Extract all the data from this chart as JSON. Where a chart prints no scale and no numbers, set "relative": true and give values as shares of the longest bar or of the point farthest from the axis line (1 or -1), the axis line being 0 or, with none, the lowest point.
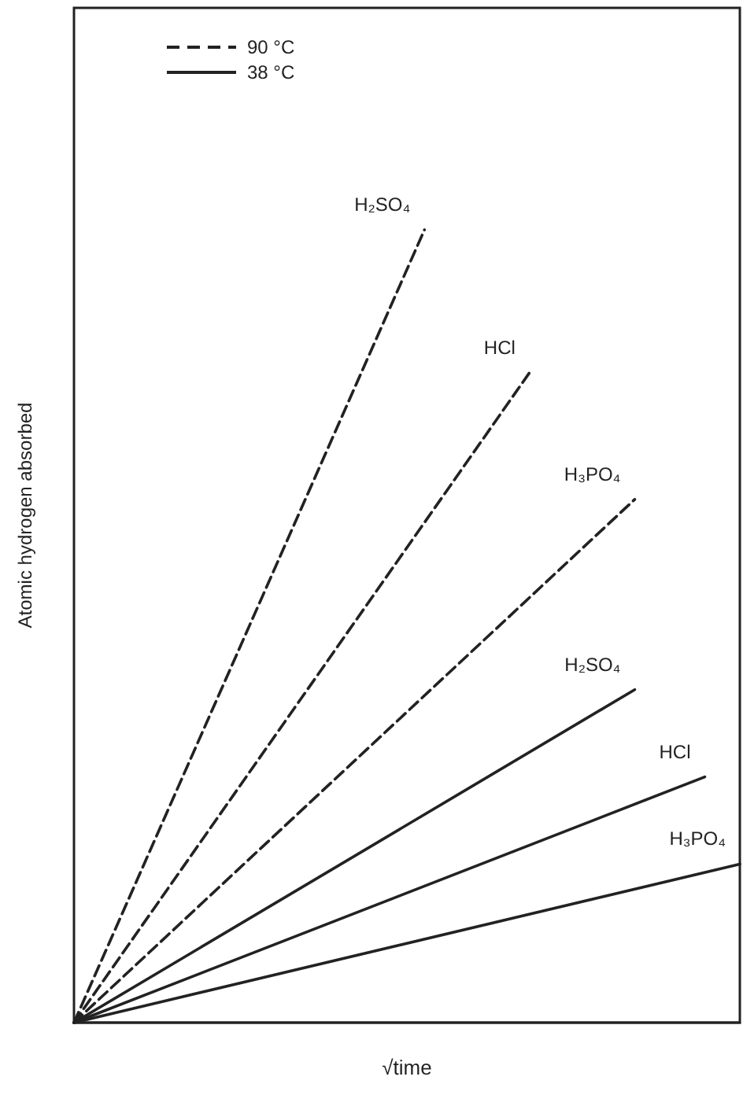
{
  "chart_data": {
    "type": "line",
    "relative": true,
    "xlabel": "√time",
    "ylabel": "Atomic hydrogen absorbed",
    "annotations": [
      "90 °C",
      "38 °C"
    ],
    "marker": "none",
    "legend": false,
    "grid": false,
    "tick_labels": false,
    "categories": [
      null,
      null,
      null,
      null,
      null,
      null,
      null,
      null,
      null,
      null,
      null,
      null,
      null,
      null,
      null,
      null,
      null,
      null,
      null,
      null
    ],
    "series": [
      {
        "name": "H₂SO₄",
        "color": "#222222",
        "line_style": "dashed",
        "values": [
          0,
          null,
          null,
          null,
          null,
          null,
          null,
          null,
          null,
          null,
          1,
          null,
          null,
          null,
          null,
          null,
          null,
          null,
          null,
          null
        ]
      },
      {
        "name": "HCl",
        "color": "#222222",
        "line_style": "dashed",
        "values": [
          0,
          null,
          null,
          null,
          null,
          null,
          null,
          null,
          null,
          null,
          null,
          null,
          null,
          0.82,
          null,
          null,
          null,
          null,
          null,
          null
        ]
      },
      {
        "name": "H₃PO₄",
        "color": "#222222",
        "line_style": "dashed",
        "values": [
          0,
          null,
          null,
          null,
          null,
          null,
          null,
          null,
          null,
          null,
          null,
          null,
          null,
          null,
          null,
          null,
          0.66,
          null,
          null,
          null
        ]
      },
      {
        "name": "H₂SO₄",
        "color": "#222222",
        "line_style": "solid",
        "values": [
          0,
          null,
          null,
          null,
          null,
          null,
          null,
          null,
          null,
          null,
          null,
          null,
          null,
          null,
          null,
          null,
          0.42,
          null,
          null,
          null
        ]
      },
      {
        "name": "HCl",
        "color": "#222222",
        "line_style": "solid",
        "values": [
          0,
          null,
          null,
          null,
          null,
          null,
          null,
          null,
          null,
          null,
          null,
          null,
          null,
          null,
          null,
          null,
          null,
          null,
          0.31,
          null
        ]
      },
      {
        "name": "H₃PO₄",
        "color": "#222222",
        "line_style": "solid",
        "values": [
          0,
          null,
          null,
          null,
          null,
          null,
          null,
          null,
          null,
          null,
          null,
          null,
          null,
          null,
          null,
          null,
          null,
          null,
          null,
          0.2
        ]
      }
    ]
  }
}
